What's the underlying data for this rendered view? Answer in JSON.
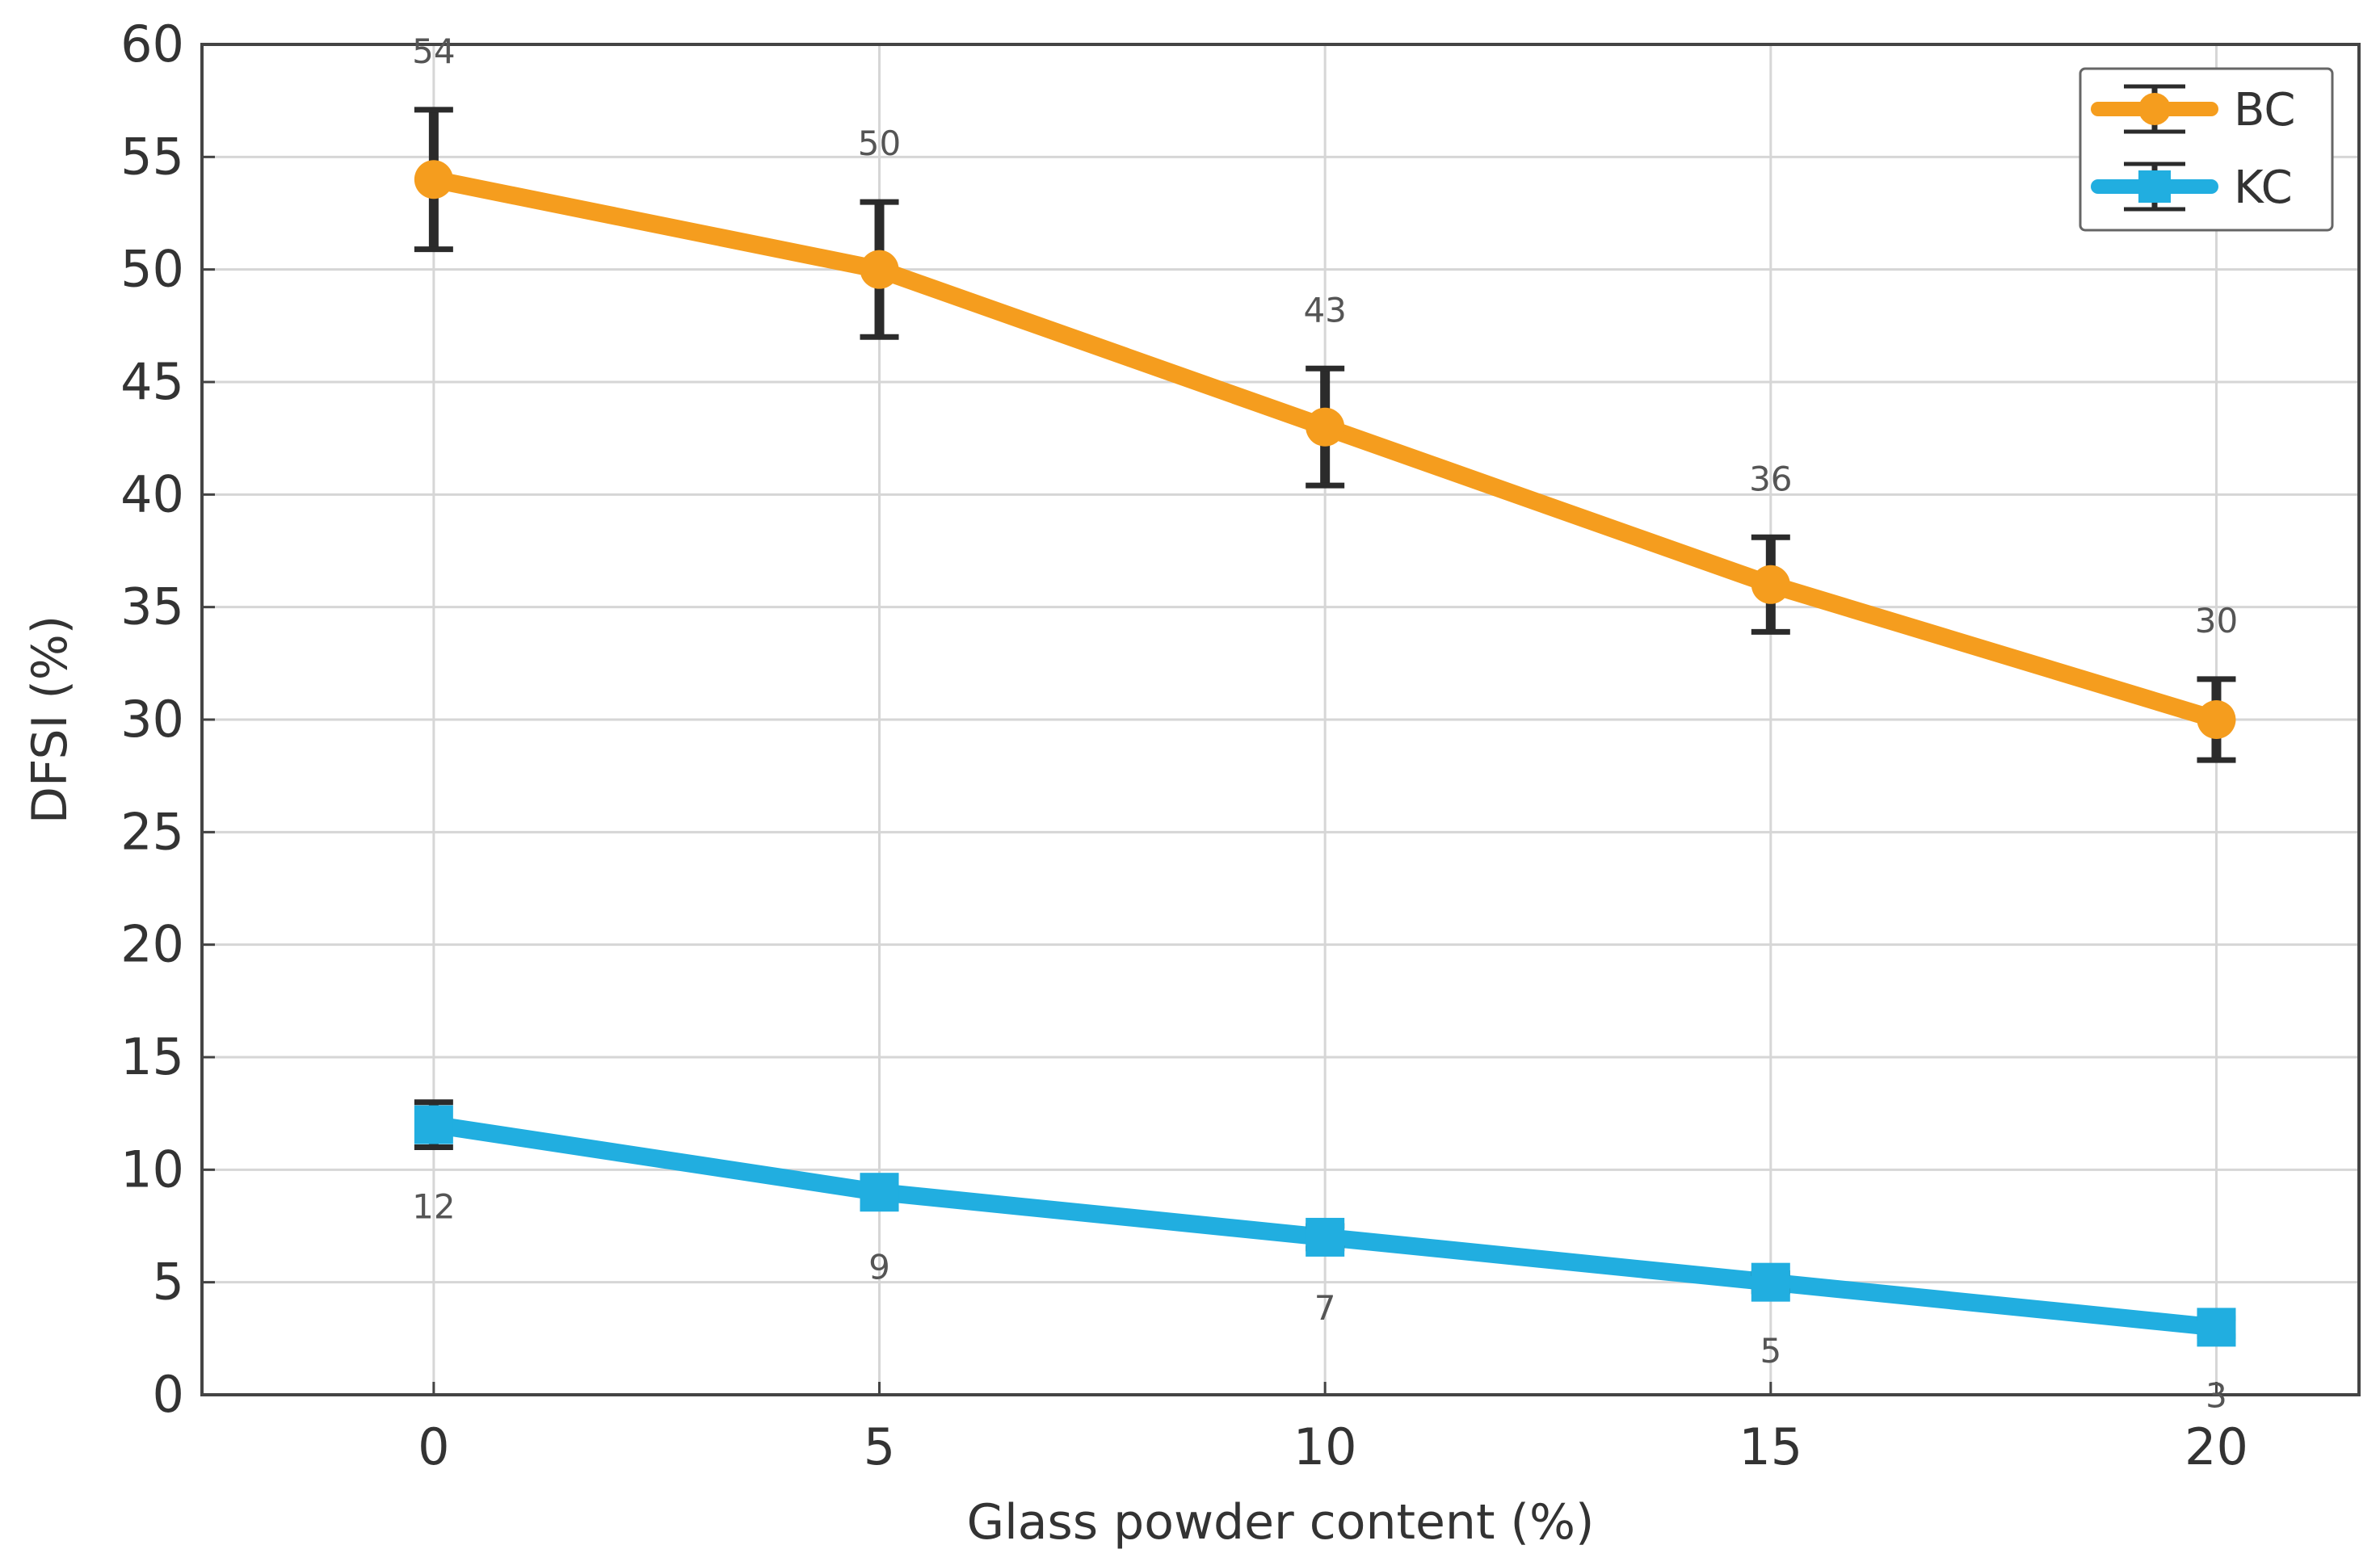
{
  "chart_data": {
    "type": "line",
    "x": [
      0,
      5,
      10,
      15,
      20
    ],
    "xlabel": "Glass powder content (%)",
    "ylabel": "DFSI (%)",
    "xlim": [
      -2.6,
      21.6
    ],
    "ylim": [
      0,
      60
    ],
    "xticks": [
      "0",
      "5",
      "10",
      "15",
      "20"
    ],
    "yticks": [
      "0",
      "5",
      "10",
      "15",
      "20",
      "25",
      "30",
      "35",
      "40",
      "45",
      "50",
      "55",
      "60"
    ],
    "grid": true,
    "legend_position": "top-right",
    "series": [
      {
        "name": "BC",
        "color": "#f59d1e",
        "marker": "circle",
        "values": [
          54,
          50,
          43,
          36,
          30
        ],
        "errors": [
          3.1,
          3.0,
          2.6,
          2.1,
          1.8
        ],
        "labels": [
          "54",
          "50",
          "43",
          "36",
          "30"
        ]
      },
      {
        "name": "KC",
        "color": "#21aee0",
        "marker": "square",
        "values": [
          12,
          9,
          7,
          5,
          3
        ],
        "errors": [
          1.0,
          0.7,
          0.5,
          0.4,
          0.4
        ],
        "labels": [
          "12",
          "9",
          "7",
          "5",
          "3"
        ]
      }
    ]
  }
}
